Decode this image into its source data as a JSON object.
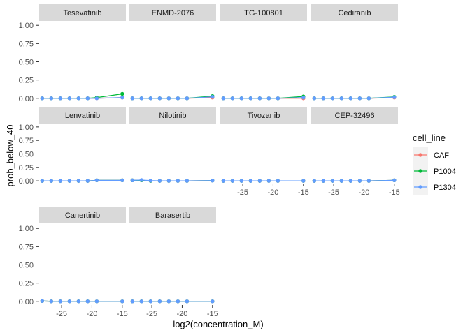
{
  "chart_data": {
    "type": "line",
    "xlabel": "log2(concentration_M)",
    "ylabel": "prob_below_40",
    "xlim": [
      -28.7,
      -14.4
    ],
    "ylim": [
      -0.05,
      1.05
    ],
    "xticks": [
      -25,
      -20,
      -15
    ],
    "yticks": [
      0.0,
      0.25,
      0.5,
      0.75,
      1.0
    ],
    "ytick_labels": [
      "0.00",
      "0.25",
      "0.50",
      "0.75",
      "1.00"
    ],
    "x": [
      -28.2,
      -26.7,
      -25.2,
      -23.7,
      -22.2,
      -20.7,
      -19.2,
      -15.0
    ],
    "legend": {
      "title": "cell_line",
      "position": "right",
      "entries": [
        {
          "name": "CAF",
          "color": "#F8766D"
        },
        {
          "name": "P1004",
          "color": "#00BA38"
        },
        {
          "name": "P1304",
          "color": "#619CFF"
        }
      ]
    },
    "grid": false,
    "panels": [
      {
        "name": "Tesevatinib",
        "series": [
          {
            "name": "CAF",
            "values": [
              0,
              0,
              0,
              0,
              0,
              0,
              0,
              0.01
            ]
          },
          {
            "name": "P1004",
            "values": [
              0,
              0,
              0,
              0,
              0,
              0,
              0.01,
              0.06
            ]
          },
          {
            "name": "P1304",
            "values": [
              0,
              0,
              0,
              0,
              0,
              0,
              0,
              0.01
            ]
          }
        ]
      },
      {
        "name": "ENMD-2076",
        "series": [
          {
            "name": "CAF",
            "values": [
              0,
              0,
              0,
              0,
              0,
              0,
              0,
              0.01
            ]
          },
          {
            "name": "P1004",
            "values": [
              0,
              0,
              0,
              0,
              0,
              0,
              0,
              0.03
            ]
          },
          {
            "name": "P1304",
            "values": [
              0,
              0,
              0,
              0,
              0,
              0,
              0,
              0.02
            ]
          }
        ]
      },
      {
        "name": "TG-100801",
        "series": [
          {
            "name": "CAF",
            "values": [
              0,
              0,
              0,
              0,
              0,
              0,
              0,
              0.0
            ]
          },
          {
            "name": "P1004",
            "values": [
              0,
              0,
              0,
              0,
              0,
              0,
              0,
              0.025
            ]
          },
          {
            "name": "P1304",
            "values": [
              0,
              0,
              0,
              0,
              0,
              0,
              0,
              0.01
            ]
          }
        ]
      },
      {
        "name": "Cediranib",
        "series": [
          {
            "name": "CAF",
            "values": [
              0,
              0,
              0,
              0,
              0,
              0,
              0,
              0.01
            ]
          },
          {
            "name": "P1004",
            "values": [
              0,
              0,
              0,
              0,
              0,
              0,
              0,
              0.02
            ]
          },
          {
            "name": "P1304",
            "values": [
              0,
              0,
              0,
              0,
              0,
              0,
              0,
              0.015
            ]
          }
        ]
      },
      {
        "name": "Lenvatinib",
        "series": [
          {
            "name": "CAF",
            "values": [
              0,
              0,
              0,
              0,
              0,
              0,
              0.01,
              0.01
            ]
          },
          {
            "name": "P1004",
            "values": [
              0,
              0,
              0,
              0,
              0,
              0,
              0.01,
              0.01
            ]
          },
          {
            "name": "P1304",
            "values": [
              0,
              0,
              0,
              0,
              0,
              0,
              0.01,
              0.01
            ]
          }
        ]
      },
      {
        "name": "Nilotinib",
        "series": [
          {
            "name": "CAF",
            "values": [
              0.01,
              0.01,
              0,
              0,
              0,
              0,
              0,
              0.005
            ]
          },
          {
            "name": "P1004",
            "values": [
              0.01,
              0.01,
              0,
              0,
              0,
              0,
              0,
              0.005
            ]
          },
          {
            "name": "P1304",
            "values": [
              0.01,
              0.015,
              0.005,
              0,
              0,
              0,
              0,
              0.005
            ]
          }
        ]
      },
      {
        "name": "Tivozanib",
        "series": [
          {
            "name": "CAF",
            "values": [
              0,
              0,
              0,
              0,
              0,
              0,
              0,
              0
            ]
          },
          {
            "name": "P1004",
            "values": [
              0,
              0,
              0,
              0,
              0,
              0,
              0,
              0
            ]
          },
          {
            "name": "P1304",
            "values": [
              0,
              0,
              0,
              0,
              0,
              0,
              0,
              0
            ]
          }
        ]
      },
      {
        "name": "CEP-32496",
        "series": [
          {
            "name": "CAF",
            "values": [
              0,
              0,
              0,
              0,
              0,
              0,
              0,
              0.01
            ]
          },
          {
            "name": "P1004",
            "values": [
              0,
              0,
              0,
              0,
              0,
              0,
              0,
              0.01
            ]
          },
          {
            "name": "P1304",
            "values": [
              0,
              0,
              0,
              0,
              0,
              0,
              0,
              0.01
            ]
          }
        ]
      },
      {
        "name": "Canertinib",
        "series": [
          {
            "name": "CAF",
            "values": [
              0.005,
              0,
              0,
              0,
              0,
              0,
              0,
              0
            ]
          },
          {
            "name": "P1004",
            "values": [
              0.005,
              0,
              0,
              0,
              0,
              0,
              0,
              0
            ]
          },
          {
            "name": "P1304",
            "values": [
              0.005,
              0,
              0,
              0,
              0,
              0,
              0,
              0
            ]
          }
        ]
      },
      {
        "name": "Barasertib",
        "series": [
          {
            "name": "CAF",
            "values": [
              0,
              0,
              0,
              0,
              0,
              0,
              0,
              0
            ]
          },
          {
            "name": "P1004",
            "values": [
              0,
              0,
              0,
              0,
              0,
              0,
              0,
              0
            ]
          },
          {
            "name": "P1304",
            "values": [
              0,
              0,
              0,
              0,
              0,
              0,
              0,
              0
            ]
          }
        ]
      }
    ]
  }
}
